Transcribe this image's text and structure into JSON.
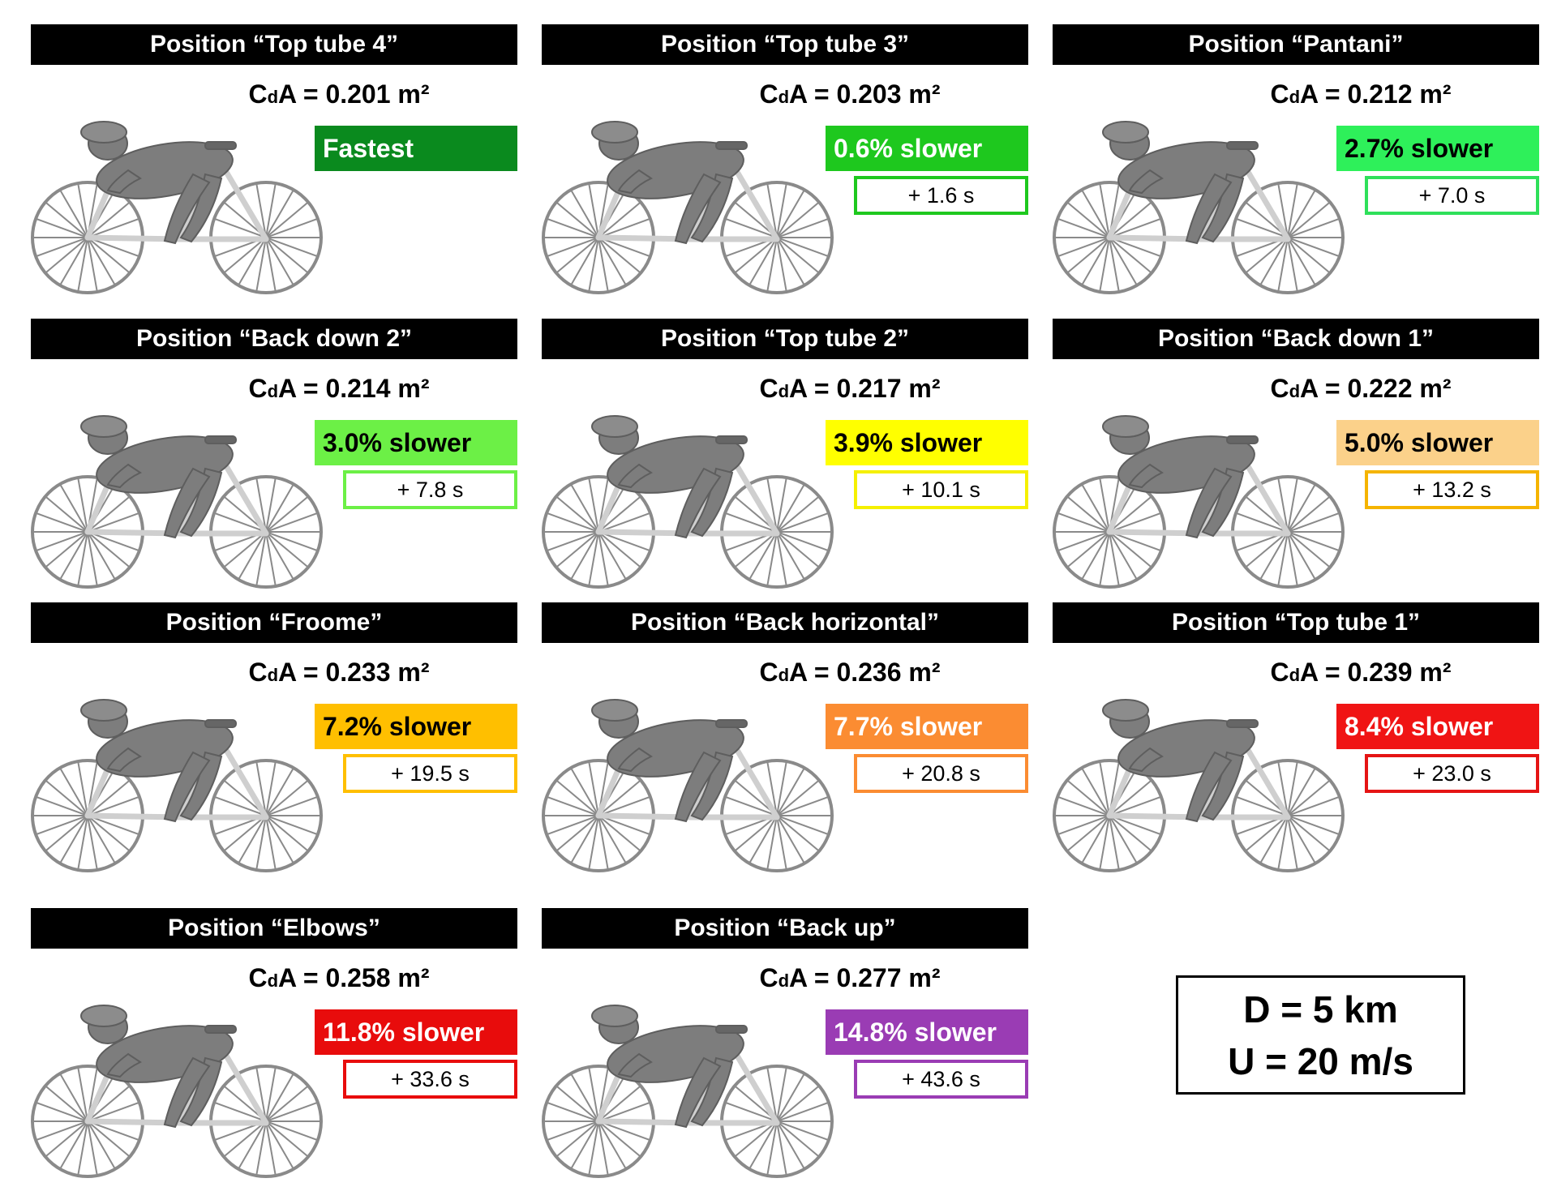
{
  "panels": [
    {
      "title": "Position “Top tube 4”",
      "cda_value": "= 0.201 m²",
      "badge": "Fastest",
      "delta": "",
      "badge_color": "#0a8a1e",
      "badge_text_color": "#ffffff",
      "delta_color": ""
    },
    {
      "title": "Position “Top tube 3”",
      "cda_value": "= 0.203 m²",
      "badge": "0.6% slower",
      "delta": "+ 1.6 s",
      "badge_color": "#1ec81e",
      "badge_text_color": "#ffffff",
      "delta_color": "#1ec81e"
    },
    {
      "title": "Position “Pantani”",
      "cda_value": "= 0.212 m²",
      "badge": "2.7% slower",
      "delta": "+ 7.0 s",
      "badge_color": "#2ef05a",
      "badge_text_color": "#000000",
      "delta_color": "#2ee05a"
    },
    {
      "title": "Position “Back down 2”",
      "cda_value": "= 0.214 m²",
      "badge": "3.0% slower",
      "delta": "+ 7.8 s",
      "badge_color": "#6cf046",
      "badge_text_color": "#000000",
      "delta_color": "#6cf046"
    },
    {
      "title": "Position “Top tube 2”",
      "cda_value": "= 0.217 m²",
      "badge": "3.9% slower",
      "delta": "+ 10.1 s",
      "badge_color": "#ffff00",
      "badge_text_color": "#000000",
      "delta_color": "#f5f000"
    },
    {
      "title": "Position “Back down 1”",
      "cda_value": "= 0.222 m²",
      "badge": "5.0% slower",
      "delta": "+ 13.2 s",
      "badge_color": "#fbd18a",
      "badge_text_color": "#000000",
      "delta_color": "#f5b400"
    },
    {
      "title": "Position “Froome”",
      "cda_value": "= 0.233 m²",
      "badge": "7.2% slower",
      "delta": "+ 19.5 s",
      "badge_color": "#ffbf00",
      "badge_text_color": "#000000",
      "delta_color": "#ffbf00"
    },
    {
      "title": "Position “Back horizontal”",
      "cda_value": "= 0.236 m²",
      "badge": "7.7% slower",
      "delta": "+ 20.8 s",
      "badge_color": "#fb8c32",
      "badge_text_color": "#ffffff",
      "delta_color": "#fb8c32"
    },
    {
      "title": "Position “Top tube 1”",
      "cda_value": "= 0.239 m²",
      "badge": "8.4% slower",
      "delta": "+ 23.0 s",
      "badge_color": "#f01414",
      "badge_text_color": "#ffffff",
      "delta_color": "#e51414"
    },
    {
      "title": "Position “Elbows”",
      "cda_value": "= 0.258 m²",
      "badge": "11.8% slower",
      "delta": "+ 33.6 s",
      "badge_color": "#e80c0c",
      "badge_text_color": "#ffffff",
      "delta_color": "#e80c0c"
    },
    {
      "title": "Position “Back up”",
      "cda_value": "= 0.277 m²",
      "badge": "14.8% slower",
      "delta": "+ 43.6 s",
      "badge_color": "#9a3cb4",
      "badge_text_color": "#ffffff",
      "delta_color": "#9a3cb4"
    }
  ],
  "conditions": {
    "distance": "D = 5 km",
    "speed": "U = 20 m/s"
  }
}
